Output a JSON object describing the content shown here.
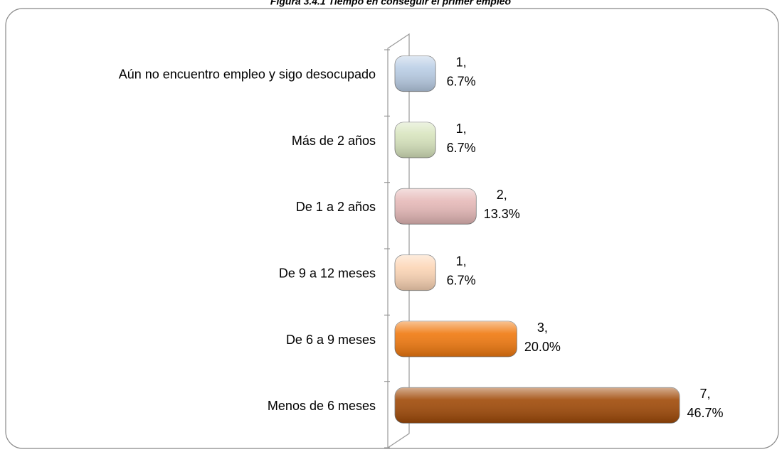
{
  "chart_data": {
    "type": "hbar",
    "title": "Figura 3.4.1 Tiempo en conseguir el primer empleo",
    "categories": [
      "Aún no encuentro empleo y sigo desocupado",
      "Más de 2 años",
      "De 1 a 2 años",
      "De 9 a 12 meses",
      "De 6 a 9 meses",
      "Menos de 6 meses"
    ],
    "values": [
      1,
      1,
      2,
      1,
      3,
      7
    ],
    "value_labels": [
      [
        "1,",
        "6.7%"
      ],
      [
        "1,",
        "6.7%"
      ],
      [
        "2,",
        "13.3%"
      ],
      [
        "1,",
        "6.7%"
      ],
      [
        "3,",
        "20.0%"
      ],
      [
        "7,",
        "46.7%"
      ]
    ],
    "colors": [
      "#b9cde5",
      "#d7e4bd",
      "#e6b9b8",
      "#fcd5b5",
      "#f0790f",
      "#a04a08"
    ],
    "xlim": [
      0,
      7
    ]
  }
}
